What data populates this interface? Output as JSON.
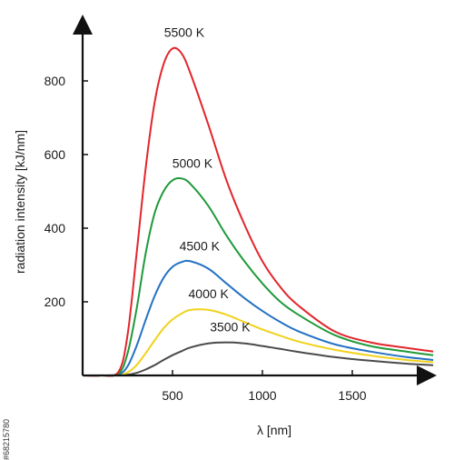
{
  "chart_data": {
    "type": "line",
    "xlabel": "λ [nm]",
    "ylabel": "radiation intensity [kJ/nm]",
    "xlim": [
      0,
      1950
    ],
    "ylim": [
      0,
      950
    ],
    "x_ticks": [
      {
        "value": 500,
        "label": "500"
      },
      {
        "value": 1000,
        "label": "1000"
      },
      {
        "value": 1500,
        "label": "1500"
      }
    ],
    "y_ticks": [
      {
        "value": 200,
        "label": "200"
      },
      {
        "value": 400,
        "label": "400"
      },
      {
        "value": 600,
        "label": "600"
      },
      {
        "value": 800,
        "label": "800"
      }
    ],
    "grid": false,
    "legend": "inline labels above each curve",
    "series": [
      {
        "name": "5500 K",
        "color": "#e1262c",
        "peak_x": 525,
        "peak_y": 890,
        "x": [
          0,
          100,
          200,
          250,
          300,
          350,
          400,
          450,
          500,
          550,
          600,
          700,
          800,
          900,
          1000,
          1100,
          1200,
          1400,
          1600,
          1800,
          1950
        ],
        "y": [
          0,
          0,
          10,
          110,
          330,
          560,
          740,
          845,
          888,
          875,
          820,
          680,
          530,
          410,
          310,
          240,
          190,
          120,
          90,
          75,
          65
        ]
      },
      {
        "name": "5000 K",
        "color": "#1f9a3a",
        "peak_x": 570,
        "peak_y": 535,
        "x": [
          0,
          100,
          200,
          250,
          300,
          350,
          400,
          450,
          500,
          550,
          600,
          700,
          800,
          900,
          1000,
          1100,
          1200,
          1400,
          1600,
          1800,
          1950
        ],
        "y": [
          0,
          0,
          5,
          60,
          180,
          330,
          440,
          500,
          530,
          535,
          520,
          460,
          380,
          310,
          250,
          200,
          165,
          110,
          80,
          65,
          55
        ]
      },
      {
        "name": "4500 K",
        "color": "#2471c2",
        "peak_x": 610,
        "peak_y": 310,
        "x": [
          0,
          100,
          200,
          250,
          300,
          350,
          400,
          450,
          500,
          550,
          600,
          700,
          800,
          900,
          1000,
          1100,
          1200,
          1400,
          1600,
          1800,
          1950
        ],
        "y": [
          0,
          0,
          3,
          25,
          80,
          150,
          215,
          265,
          295,
          308,
          310,
          290,
          250,
          210,
          175,
          145,
          120,
          85,
          65,
          50,
          42
        ]
      },
      {
        "name": "4000 K",
        "color": "#f1d21c",
        "peak_x": 660,
        "peak_y": 180,
        "x": [
          0,
          100,
          200,
          250,
          300,
          350,
          400,
          450,
          500,
          550,
          600,
          700,
          800,
          900,
          1000,
          1100,
          1200,
          1400,
          1600,
          1800,
          1950
        ],
        "y": [
          0,
          0,
          1,
          8,
          28,
          60,
          95,
          128,
          152,
          168,
          178,
          178,
          165,
          145,
          125,
          108,
          92,
          70,
          54,
          42,
          36
        ]
      },
      {
        "name": "3500 K",
        "color": "#4a4a4a",
        "peak_x": 780,
        "peak_y": 90,
        "x": [
          0,
          100,
          200,
          250,
          300,
          350,
          400,
          450,
          500,
          550,
          600,
          700,
          800,
          900,
          1000,
          1100,
          1200,
          1400,
          1600,
          1800,
          1950
        ],
        "y": [
          0,
          0,
          0,
          2,
          7,
          16,
          28,
          42,
          55,
          66,
          76,
          87,
          90,
          87,
          80,
          72,
          64,
          50,
          40,
          32,
          28
        ]
      }
    ]
  },
  "stock_id": "#68215780"
}
